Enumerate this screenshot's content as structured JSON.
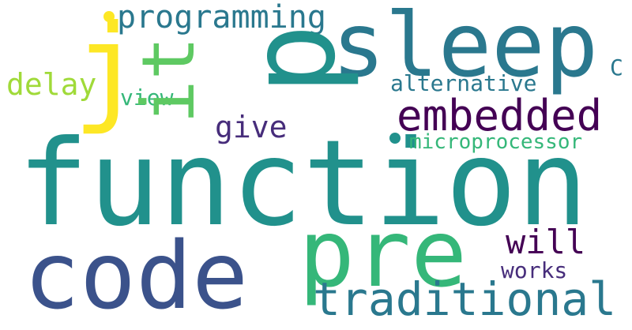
{
  "palette": {
    "teal": "#21918c",
    "teal_dark": "#2a788e",
    "green": "#35b779",
    "green_light": "#5ec962",
    "blue": "#3b528b",
    "purple": "#440154",
    "indigo": "#472d7b",
    "lime": "#a0da39",
    "yellow": "#fde725",
    "background": "#ffffff"
  },
  "words": {
    "function": "function",
    "code": "code",
    "sleep": "sleep",
    "p": "p",
    "pre": "pre",
    "traditional": "traditional",
    "embedded": "embedded",
    "it": "it",
    "j": "j",
    "programming": "programming",
    "delay": "delay",
    "alternative": "alternative",
    "microprocessor": "microprocessor",
    "give": "give",
    "will": "will",
    "works": "works",
    "view": "view",
    "c": "C"
  }
}
